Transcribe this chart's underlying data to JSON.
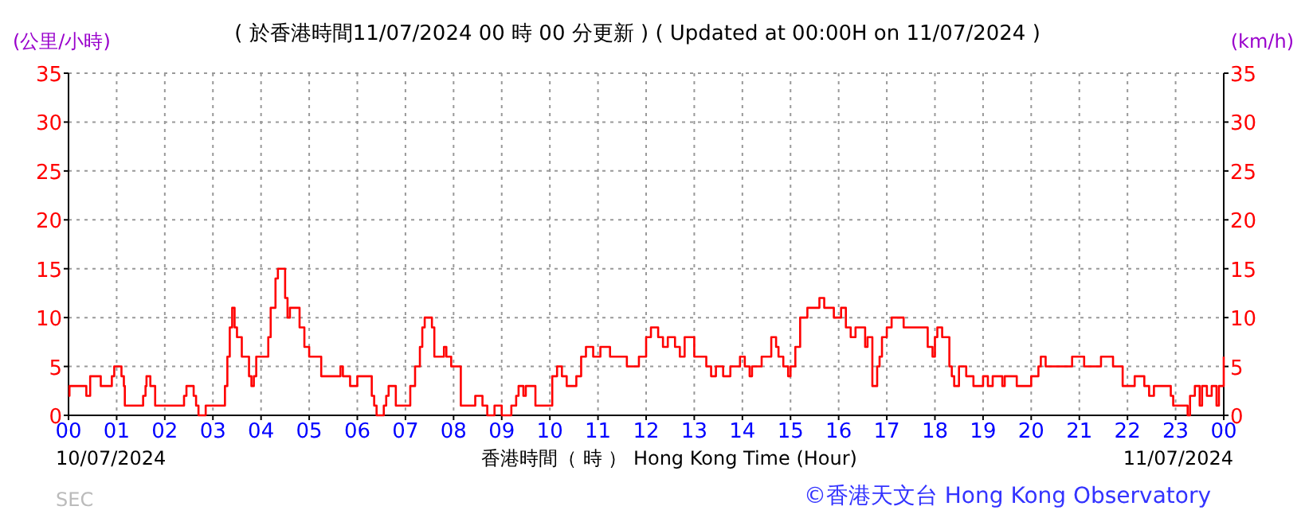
{
  "chart_data": {
    "type": "step",
    "title": "( 於香港時間11/07/2024 00 時 00 分更新 ) ( Updated at 00:00H on 11/07/2024 )",
    "xlabel": "香港時間（ 時 ） Hong Kong Time (Hour)",
    "ylabel": "(公里/小時)",
    "y2label": "(km/h)",
    "annotations": [
      "10/07/2024",
      "11/07/2024",
      "SEC",
      "©香港天文台 Hong Kong Observatory"
    ],
    "x": [
      0,
      0.02,
      0.35,
      0.37,
      0.45,
      0.65,
      0.67,
      0.85,
      0.9,
      0.95,
      1.05,
      1.1,
      1.15,
      1.17,
      1.5,
      1.55,
      1.6,
      1.62,
      1.67,
      1.7,
      1.75,
      1.8,
      2.35,
      2.4,
      2.45,
      2.55,
      2.6,
      2.65,
      2.7,
      2.8,
      2.85,
      3.2,
      3.25,
      3.3,
      3.35,
      3.4,
      3.45,
      3.5,
      3.6,
      3.75,
      3.8,
      3.85,
      3.9,
      4.1,
      4.15,
      4.2,
      4.3,
      4.35,
      4.45,
      4.5,
      4.55,
      4.6,
      4.75,
      4.8,
      4.9,
      5.0,
      5.2,
      5.25,
      5.6,
      5.65,
      5.7,
      5.8,
      5.85,
      5.95,
      6.0,
      6.25,
      6.3,
      6.35,
      6.4,
      6.5,
      6.55,
      6.6,
      6.65,
      6.75,
      6.8,
      7.05,
      7.1,
      7.2,
      7.3,
      7.35,
      7.4,
      7.5,
      7.55,
      7.6,
      7.75,
      7.8,
      7.85,
      7.95,
      8.1,
      8.15,
      8.4,
      8.45,
      8.55,
      8.6,
      8.7,
      8.8,
      8.85,
      8.95,
      9.0,
      9.1,
      9.2,
      9.3,
      9.35,
      9.45,
      9.5,
      9.65,
      9.7,
      10.0,
      10.05,
      10.15,
      10.25,
      10.35,
      10.5,
      10.55,
      10.65,
      10.75,
      10.85,
      10.9,
      11.0,
      11.05,
      11.15,
      11.25,
      11.55,
      11.6,
      11.8,
      11.85,
      11.95,
      12.0,
      12.1,
      12.25,
      12.35,
      12.45,
      12.55,
      12.6,
      12.7,
      12.8,
      12.95,
      13.0,
      13.2,
      13.25,
      13.35,
      13.45,
      13.55,
      13.6,
      13.75,
      13.85,
      13.95,
      14.05,
      14.15,
      14.2,
      14.3,
      14.4,
      14.55,
      14.6,
      14.7,
      14.75,
      14.85,
      14.95,
      15.0,
      15.1,
      15.2,
      15.35,
      15.5,
      15.6,
      15.7,
      15.9,
      16.0,
      16.05,
      16.15,
      16.25,
      16.35,
      16.5,
      16.55,
      16.6,
      16.7,
      16.8,
      16.85,
      16.9,
      17.0,
      17.1,
      17.3,
      17.35,
      17.8,
      17.85,
      17.95,
      18.0,
      18.05,
      18.15,
      18.3,
      18.35,
      18.4,
      18.5,
      18.6,
      18.65,
      18.8,
      19.0,
      19.1,
      19.2,
      19.4,
      19.45,
      19.7,
      20.0,
      20.15,
      20.2,
      20.3,
      20.8,
      20.85,
      21.05,
      21.1,
      21.4,
      21.45,
      21.65,
      21.7,
      21.85,
      21.9,
      22.1,
      22.15,
      22.25,
      22.35,
      22.45,
      22.55,
      22.85,
      22.9,
      22.95,
      23.2,
      23.25,
      23.3,
      23.4,
      23.5,
      23.55,
      23.65,
      23.75,
      23.85,
      23.9,
      24.0
    ],
    "values": [
      2,
      3,
      3,
      2,
      4,
      4,
      3,
      3,
      4,
      5,
      5,
      4,
      3,
      1,
      1,
      2,
      3,
      4,
      4,
      3,
      3,
      1,
      1,
      2,
      3,
      3,
      2,
      1,
      0,
      0,
      1,
      1,
      3,
      6,
      9,
      11,
      9,
      8,
      6,
      4,
      3,
      4,
      6,
      6,
      8,
      11,
      14,
      15,
      15,
      12,
      10,
      11,
      11,
      9,
      7,
      6,
      6,
      4,
      4,
      5,
      4,
      4,
      3,
      3,
      4,
      4,
      2,
      1,
      0,
      0,
      1,
      2,
      3,
      3,
      1,
      1,
      3,
      5,
      7,
      9,
      10,
      10,
      9,
      6,
      6,
      7,
      6,
      5,
      5,
      1,
      1,
      2,
      2,
      1,
      0,
      0,
      1,
      1,
      0,
      0,
      1,
      2,
      3,
      2,
      3,
      3,
      1,
      1,
      4,
      5,
      4,
      3,
      3,
      4,
      6,
      7,
      7,
      6,
      6,
      7,
      7,
      6,
      6,
      5,
      5,
      6,
      6,
      8,
      9,
      8,
      7,
      8,
      8,
      7,
      6,
      8,
      8,
      6,
      6,
      5,
      4,
      5,
      5,
      4,
      5,
      5,
      6,
      5,
      4,
      5,
      5,
      6,
      6,
      8,
      7,
      6,
      5,
      4,
      5,
      7,
      10,
      11,
      11,
      12,
      11,
      10,
      10,
      11,
      9,
      8,
      9,
      9,
      7,
      8,
      3,
      5,
      6,
      8,
      9,
      10,
      10,
      9,
      9,
      7,
      6,
      8,
      9,
      8,
      5,
      4,
      3,
      5,
      5,
      4,
      3,
      4,
      3,
      4,
      3,
      4,
      3,
      4,
      5,
      6,
      5,
      5,
      6,
      6,
      5,
      5,
      6,
      6,
      5,
      5,
      3,
      3,
      4,
      4,
      3,
      2,
      3,
      3,
      2,
      1,
      1,
      0,
      2,
      3,
      1,
      3,
      2,
      3,
      1,
      3,
      6
    ],
    "color": "#ff0000",
    "xlim": [
      0,
      24
    ],
    "xticks": [
      {
        "value": 0,
        "label": "00"
      },
      {
        "value": 1,
        "label": "01"
      },
      {
        "value": 2,
        "label": "02"
      },
      {
        "value": 3,
        "label": "03"
      },
      {
        "value": 4,
        "label": "04"
      },
      {
        "value": 5,
        "label": "05"
      },
      {
        "value": 6,
        "label": "06"
      },
      {
        "value": 7,
        "label": "07"
      },
      {
        "value": 8,
        "label": "08"
      },
      {
        "value": 9,
        "label": "09"
      },
      {
        "value": 10,
        "label": "10"
      },
      {
        "value": 11,
        "label": "11"
      },
      {
        "value": 12,
        "label": "12"
      },
      {
        "value": 13,
        "label": "13"
      },
      {
        "value": 14,
        "label": "14"
      },
      {
        "value": 15,
        "label": "15"
      },
      {
        "value": 16,
        "label": "16"
      },
      {
        "value": 17,
        "label": "17"
      },
      {
        "value": 18,
        "label": "18"
      },
      {
        "value": 19,
        "label": "19"
      },
      {
        "value": 20,
        "label": "20"
      },
      {
        "value": 21,
        "label": "21"
      },
      {
        "value": 22,
        "label": "22"
      },
      {
        "value": 23,
        "label": "23"
      },
      {
        "value": 24,
        "label": "00"
      }
    ],
    "ylim": [
      0,
      35
    ],
    "yticks": [
      0,
      5,
      10,
      15,
      20,
      25,
      30,
      35
    ],
    "y2lim": [
      0,
      35
    ],
    "y2ticks": [
      0,
      5,
      10,
      15,
      20,
      25,
      30,
      35
    ],
    "grid": true,
    "marker": "none",
    "line_style": "solid"
  }
}
